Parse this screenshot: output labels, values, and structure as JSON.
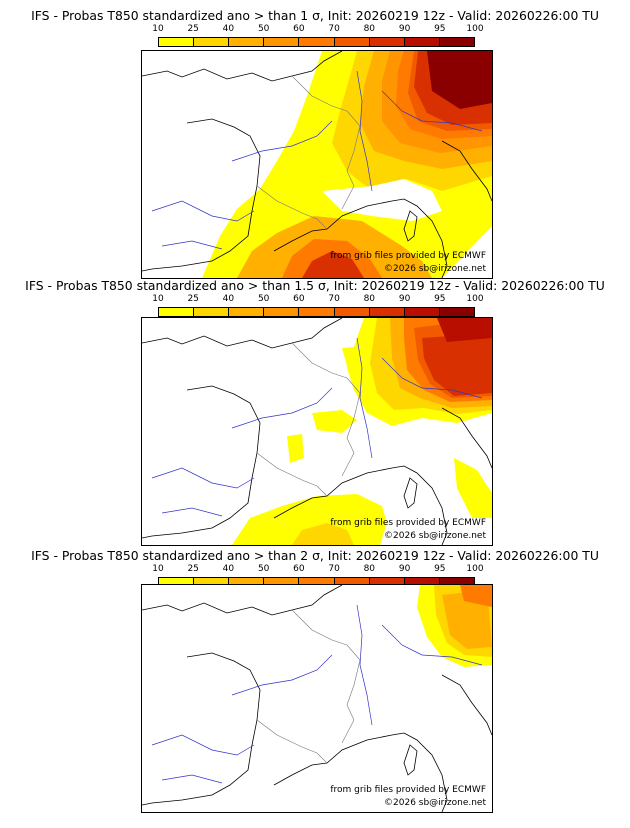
{
  "panels": [
    {
      "title": "IFS - Probas T850  standardized ano > than 1 σ, Init: 20260219 12z - Valid: 20260226:00 TU",
      "credit_source": "from grib files provided by ECMWF",
      "credit_copyright": "©2026 sb@irizone.net"
    },
    {
      "title": "IFS - Probas T850  standardized ano > than 1.5 σ, Init: 20260219 12z - Valid: 20260226:00 TU",
      "credit_source": "from grib files provided by ECMWF",
      "credit_copyright": "©2026 sb@irizone.net"
    },
    {
      "title": "IFS - Probas T850  standardized ano > than 2 σ, Init: 20260219 12z - Valid: 20260226:00 TU",
      "credit_source": "from grib files provided by ECMWF",
      "credit_copyright": "©2026 sb@irizone.net"
    }
  ],
  "legend": {
    "ticks": [
      "10",
      "25",
      "40",
      "50",
      "60",
      "70",
      "80",
      "90",
      "95",
      "100"
    ],
    "colors": [
      "#ffff00",
      "#ffd700",
      "#ffb000",
      "#ff9500",
      "#ff7a00",
      "#f25a00",
      "#d83000",
      "#b80e00",
      "#8a0000"
    ]
  }
}
